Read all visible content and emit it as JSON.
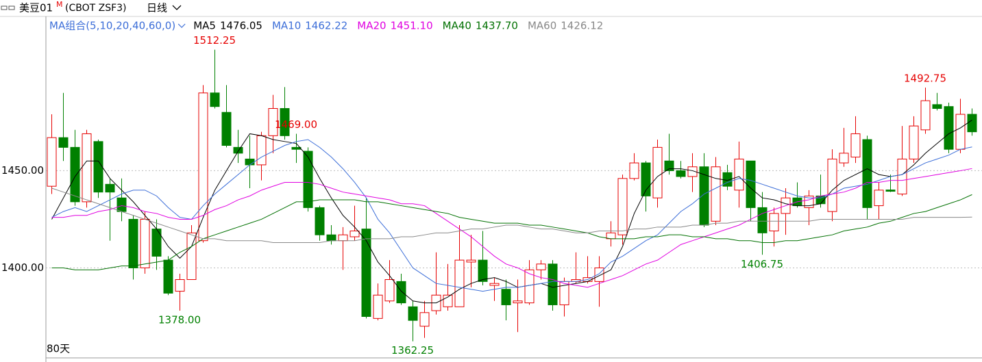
{
  "header": {
    "title": "美豆01",
    "title_mark": "M",
    "code": "(CBOT ZSF3)",
    "period": "日线",
    "ma_group": "MA组合(5,10,20,40,60,0)"
  },
  "chart_data": {
    "type": "candlestick",
    "footer": "80天",
    "up_color": "#e60000",
    "down_color": "#008000",
    "ylim": [
      1353,
      1529
    ],
    "yticks": [
      {
        "value": 1400,
        "label": "1400.00"
      },
      {
        "value": 1450,
        "label": "1450.00"
      }
    ],
    "grid": true,
    "candles": {
      "open": [
        1442,
        1467,
        1462,
        1434,
        1465,
        1443,
        1436,
        1425,
        1400,
        1420,
        1404,
        1388,
        1394,
        1414,
        1490,
        1480,
        1462,
        1456,
        1453,
        1468,
        1482,
        1462,
        1460,
        1431,
        1417,
        1414,
        1416,
        1420,
        1374,
        1383,
        1393,
        1380,
        1370,
        1378,
        1380,
        1380,
        1403,
        1404,
        1391,
        1389,
        1382,
        1382,
        1399,
        1402,
        1381,
        1393,
        1393,
        1393,
        1415,
        1417,
        1446,
        1454,
        1436,
        1455,
        1450,
        1447,
        1452,
        1424,
        1449,
        1440,
        1455,
        1431,
        1419,
        1428,
        1436,
        1431,
        1437,
        1429,
        1454,
        1457,
        1466,
        1432,
        1440.1,
        1438,
        1456,
        1471,
        1484,
        1483,
        1461,
        1479
      ],
      "high": [
        1479,
        1490,
        1471,
        1471,
        1466,
        1446,
        1446,
        1427,
        1429,
        1425,
        1406,
        1397,
        1422,
        1494,
        1512.25,
        1494,
        1471,
        1468,
        1470,
        1489,
        1493,
        1469,
        1462,
        1432,
        1422,
        1421,
        1432,
        1436,
        1392,
        1404,
        1397,
        1383,
        1383,
        1408,
        1402,
        1422,
        1417,
        1419,
        1395,
        1394,
        1394,
        1404,
        1404,
        1404,
        1395,
        1408,
        1406,
        1406,
        1424,
        1448,
        1459,
        1455,
        1466,
        1469,
        1455,
        1459,
        1459,
        1457,
        1453,
        1465,
        1455,
        1439,
        1431,
        1441,
        1444,
        1440,
        1448,
        1461,
        1472,
        1478,
        1468,
        1444,
        1448,
        1473,
        1478,
        1492.75,
        1490,
        1485,
        1487,
        1482
      ],
      "low": [
        1438,
        1455,
        1432,
        1431,
        1436,
        1414,
        1424,
        1394,
        1397,
        1399,
        1386,
        1378,
        1394,
        1413,
        1482,
        1462,
        1454,
        1441,
        1445,
        1459,
        1466,
        1454,
        1429,
        1414,
        1412,
        1399,
        1414,
        1374,
        1373,
        1382,
        1381,
        1362.25,
        1364,
        1376,
        1378,
        1380,
        1390,
        1391,
        1383,
        1373,
        1367,
        1381,
        1394,
        1378,
        1375,
        1392,
        1392,
        1380,
        1411,
        1412,
        1445,
        1429,
        1431,
        1448,
        1446,
        1439,
        1421,
        1422,
        1440,
        1431,
        1424,
        1406.75,
        1411,
        1417,
        1431,
        1422,
        1431,
        1424,
        1452,
        1454,
        1425,
        1425,
        1439,
        1437,
        1454,
        1469,
        1481,
        1459,
        1459,
        1468
      ],
      "close": [
        1467,
        1462,
        1434,
        1469,
        1439,
        1439,
        1429,
        1400,
        1425,
        1406,
        1387,
        1394,
        1418,
        1490,
        1483,
        1463,
        1459,
        1453,
        1468,
        1482,
        1468,
        1461,
        1431,
        1417,
        1414,
        1417,
        1419,
        1375,
        1386,
        1394,
        1382,
        1373,
        1377,
        1386,
        1386,
        1404,
        1404,
        1393,
        1392,
        1381,
        1383,
        1399,
        1402,
        1381,
        1393,
        1394,
        1395,
        1400,
        1418,
        1446,
        1454,
        1437,
        1462,
        1450,
        1447,
        1452,
        1422,
        1452,
        1442,
        1456,
        1431,
        1418,
        1428,
        1436,
        1432,
        1437,
        1433,
        1456,
        1459,
        1469,
        1431,
        1440,
        1439.4,
        1456,
        1473,
        1486,
        1482,
        1461,
        1479,
        1470
      ]
    },
    "series": [
      {
        "name": "MA5",
        "color": "#000000",
        "legend_value": "1476.05",
        "values": [
          1425,
          1436,
          1447,
          1455,
          1455,
          1446,
          1440,
          1434,
          1427,
          1420,
          1411,
          1405,
          1411,
          1426,
          1440,
          1450,
          1460,
          1469,
          1468,
          1466,
          1465,
          1464,
          1457,
          1446,
          1436,
          1427,
          1421,
          1414,
          1403,
          1396,
          1388,
          1383,
          1382,
          1382,
          1385,
          1389,
          1392,
          1394,
          1395,
          1393,
          1390,
          1391,
          1392,
          1390,
          1391,
          1392,
          1393,
          1396,
          1399,
          1411,
          1428,
          1440,
          1447,
          1451,
          1451,
          1450,
          1448,
          1446,
          1445,
          1447,
          1441,
          1436,
          1435,
          1433,
          1432,
          1432,
          1433,
          1440,
          1445,
          1448,
          1451,
          1448,
          1447,
          1448,
          1453,
          1459,
          1464,
          1469,
          1472,
          1476.05
        ]
      },
      {
        "name": "MA10",
        "color": "#3c6ed8",
        "legend_value": "1462.22",
        "values": [
          1426,
          1429,
          1431,
          1429,
          1432,
          1435,
          1438,
          1440,
          1440,
          1437,
          1431,
          1426,
          1425,
          1432,
          1438,
          1443,
          1448,
          1453,
          1457,
          1460,
          1463,
          1465,
          1466,
          1462,
          1457,
          1451,
          1444,
          1436,
          1425,
          1418,
          1409,
          1400,
          1396,
          1392,
          1391,
          1390,
          1389,
          1388,
          1389,
          1390,
          1390,
          1391,
          1392,
          1393,
          1393,
          1393,
          1394,
          1397,
          1403,
          1406,
          1410,
          1414,
          1417,
          1423,
          1429,
          1433,
          1438,
          1441,
          1444,
          1446,
          1445,
          1443,
          1441,
          1439,
          1437,
          1436,
          1436,
          1438,
          1441,
          1442,
          1443,
          1445,
          1447,
          1448,
          1451,
          1454,
          1456,
          1458,
          1461,
          1462.22
        ]
      },
      {
        "name": "MA20",
        "color": "#e000e0",
        "legend_value": "1451.10",
        "values": [
          1426,
          1426,
          1427,
          1427,
          1429,
          1430,
          1432,
          1431,
          1429,
          1428,
          1426,
          1425,
          1425,
          1427,
          1430,
          1432,
          1435,
          1437,
          1440,
          1442,
          1444,
          1444,
          1444,
          1443,
          1441,
          1439,
          1438,
          1437,
          1436,
          1435,
          1433,
          1433,
          1432,
          1428,
          1424,
          1420,
          1416,
          1411,
          1406,
          1402,
          1400,
          1397,
          1395,
          1394,
          1392,
          1391,
          1390,
          1392,
          1394,
          1396,
          1399,
          1402,
          1404,
          1408,
          1412,
          1414,
          1416,
          1418,
          1420,
          1422,
          1425,
          1428,
          1430,
          1432,
          1434,
          1435,
          1437,
          1438,
          1439,
          1441,
          1444,
          1444,
          1445,
          1445,
          1446,
          1447,
          1448,
          1449,
          1450,
          1451.1
        ]
      },
      {
        "name": "MA40",
        "color": "#007000",
        "legend_value": "1437.70",
        "values": [
          1400,
          1400,
          1399,
          1399,
          1399,
          1400,
          1401,
          1401,
          1402,
          1403,
          1404,
          1408,
          1411,
          1415,
          1417,
          1419,
          1421,
          1423,
          1425,
          1428,
          1431,
          1434,
          1434,
          1435,
          1435,
          1435,
          1435,
          1434,
          1434,
          1433,
          1432,
          1431,
          1430,
          1429,
          1428,
          1426,
          1425,
          1424,
          1423,
          1423,
          1423,
          1422,
          1422,
          1421,
          1420,
          1419,
          1418,
          1416,
          1415,
          1415,
          1415,
          1416,
          1416,
          1417,
          1417,
          1416,
          1416,
          1415,
          1415,
          1414,
          1414,
          1413,
          1413,
          1414,
          1414,
          1415,
          1416,
          1417,
          1419,
          1420,
          1421,
          1423,
          1424,
          1426,
          1428,
          1429,
          1431,
          1433,
          1435,
          1437.7
        ]
      },
      {
        "name": "MA60",
        "color": "#888888",
        "legend_value": "1426.12",
        "values": [
          1441,
          1439,
          1437,
          1435,
          1433,
          1431,
          1429,
          1427,
          1425,
          1423,
          1421,
          1419,
          1417,
          1415,
          1415,
          1414,
          1414,
          1414,
          1414,
          1413,
          1413,
          1413,
          1413,
          1413,
          1414,
          1414,
          1414,
          1415,
          1415,
          1415,
          1416,
          1416,
          1417,
          1418,
          1418,
          1419,
          1420,
          1420,
          1421,
          1422,
          1422,
          1421,
          1420,
          1420,
          1419,
          1418,
          1418,
          1419,
          1419,
          1419,
          1420,
          1420,
          1421,
          1421,
          1421,
          1422,
          1422,
          1423,
          1423,
          1424,
          1424,
          1424,
          1424,
          1424,
          1424,
          1424,
          1425,
          1425,
          1425,
          1425,
          1425,
          1425,
          1425,
          1425,
          1426,
          1426,
          1426,
          1426,
          1426,
          1426.12
        ]
      }
    ],
    "annotations": [
      {
        "value": 1512.25,
        "label": "1512.25"
      },
      {
        "value": 1378,
        "label": "1378.00"
      },
      {
        "value": 1362.25,
        "label": "1362.25"
      },
      {
        "value": 1469,
        "label": "1469.00"
      },
      {
        "value": 1406.75,
        "label": "1406.75"
      },
      {
        "value": 1492.75,
        "label": "1492.75"
      }
    ]
  }
}
